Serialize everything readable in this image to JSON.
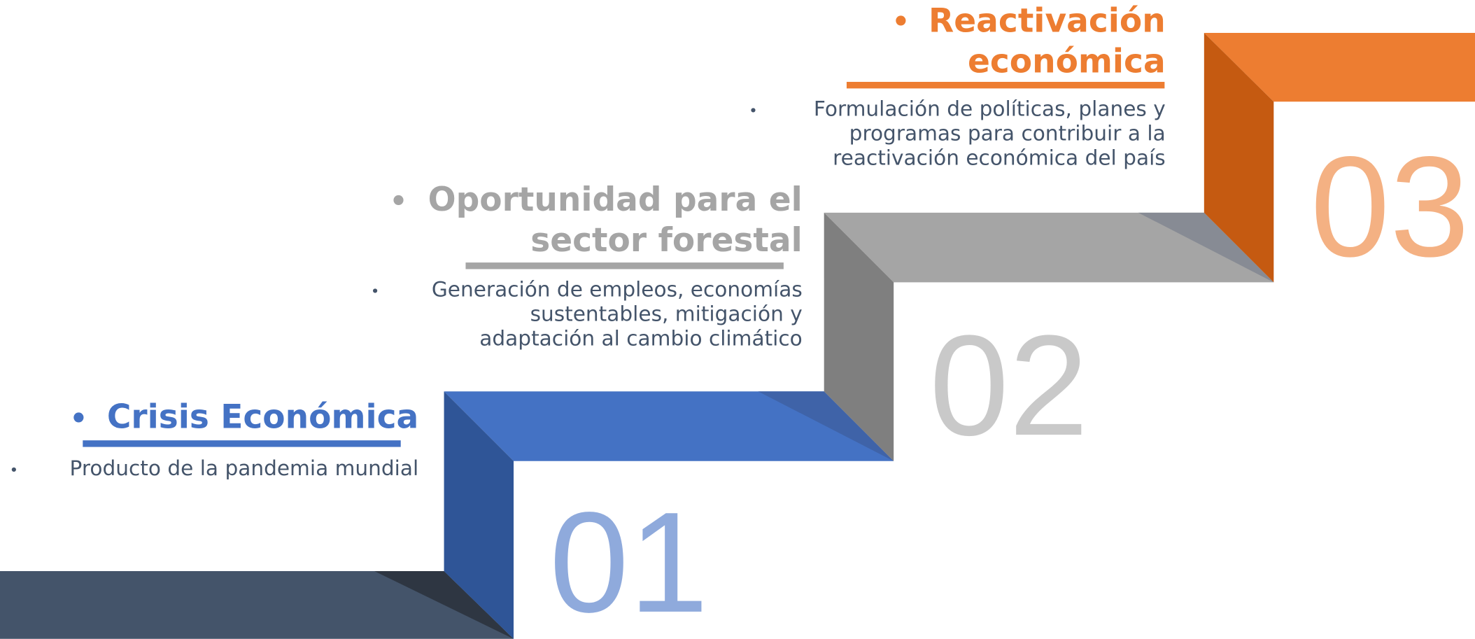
{
  "steps": [
    {
      "number": "01",
      "title_lines": [
        "Crisis Económica"
      ],
      "text_lines": [
        "Producto de la pandemia mundial"
      ]
    },
    {
      "number": "02",
      "title_lines": [
        "Oportunidad para el",
        "sector forestal"
      ],
      "text_lines": [
        "Generación de empleos, economías",
        "sustentables, mitigación y",
        "adaptación al cambio climático"
      ]
    },
    {
      "number": "03",
      "title_lines": [
        "Reactivación",
        "económica"
      ],
      "text_lines": [
        "Formulación de políticas, planes y",
        "programas para contribuir a la",
        "reactivación económica del país"
      ]
    }
  ]
}
